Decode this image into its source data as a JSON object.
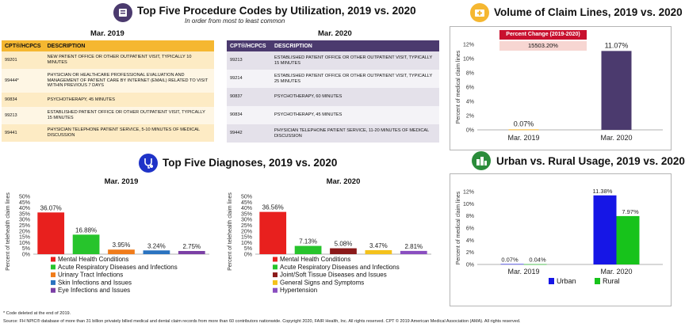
{
  "procedures": {
    "title": "Top Five Procedure Codes by Utilization, 2019 vs. 2020",
    "subtitle": "In order from most to least common",
    "col_code": "CPT®/HCPCS",
    "col_desc": "DESCRIPTION",
    "left": {
      "month": "Mar. 2019",
      "rows": [
        {
          "code": "99201",
          "desc": "NEW PATIENT OFFICE OR OTHER OUTPATIENT VISIT, TYPICALLY 10 MINUTES"
        },
        {
          "code": "99444*",
          "desc": "PHYSICIAN OR HEALTHCARE PROFESSIONAL EVALUATION AND MANAGEMENT OF PATIENT CARE BY INTERNET (EMAIL) RELATED TO VISIT WITHIN PREVIOUS 7 DAYS"
        },
        {
          "code": "90834",
          "desc": "PSYCHOTHERAPY, 45 MINUTES"
        },
        {
          "code": "99213",
          "desc": "ESTABLISHED PATIENT OFFICE OR OTHER OUTPATIENT VISIT, TYPICALLY 15 MINUTES"
        },
        {
          "code": "99441",
          "desc": "PHYSICIAN TELEPHONE PATIENT SERVICE, 5-10 MINUTES OF MEDICAL DISCUSSION"
        }
      ]
    },
    "right": {
      "month": "Mar. 2020",
      "rows": [
        {
          "code": "99213",
          "desc": "ESTABLISHED PATIENT OFFICE OR OTHER OUTPATIENT VISIT, TYPICALLY 15 MINUTES"
        },
        {
          "code": "99214",
          "desc": "ESTABLISHED PATIENT OFFICE OR OTHER OUTPATIENT VISIT, TYPICALLY 25 MINUTES"
        },
        {
          "code": "90837",
          "desc": "PSYCHOTHERAPY, 60 MINUTES"
        },
        {
          "code": "90834",
          "desc": "PSYCHOTHERAPY, 45 MINUTES"
        },
        {
          "code": "99442",
          "desc": "PHYSICIAN TELEPHONE PATIENT SERVICE, 11-20 MINUTES OF MEDICAL DISCUSSION"
        }
      ]
    }
  },
  "diagnoses": {
    "title": "Top Five Diagnoses, 2019 vs. 2020"
  },
  "claims": {
    "title": "Volume of Claim Lines, 2019 vs. 2020",
    "pct_change_label": "Percent Change (2019-2020)",
    "pct_change_value": "15503.20%"
  },
  "urban": {
    "title": "Urban vs. Rural Usage, 2019 vs. 2020"
  },
  "footer": {
    "note": "* Code deleted at the end of 2019.",
    "source": "Source: FH NPIC® database of more than 31 billion privately billed medical and dental claim records from more than 60 contributors nationwide. Copyright 2020, FAIR Health, Inc. All rights reserved. CPT © 2019 American Medical Association (AMA). All rights reserved."
  },
  "colors": {
    "gold": "#f5b731",
    "purple": "#4b3a6e",
    "blue": "#1f4e9e",
    "green": "#2a8c3a",
    "red_badge": "#c8102e",
    "pink_badge": "#f7d6d2"
  },
  "chart_data": [
    {
      "id": "diag2019",
      "type": "bar",
      "title": "Mar. 2019",
      "ylabel": "Percent of telehealth claim lines",
      "ylim": [
        0,
        50
      ],
      "yticks": [
        "0%",
        "5%",
        "10%",
        "15%",
        "20%",
        "25%",
        "30%",
        "35%",
        "40%",
        "45%",
        "50%"
      ],
      "legend_position": "bottom",
      "categories": [
        "Mental Health Conditions",
        "Acute Respiratory Diseases and Infections",
        "Urinary Tract Infections",
        "Skin Infections and Issues",
        "Eye Infections and Issues"
      ],
      "values": [
        36.07,
        16.88,
        3.95,
        3.24,
        2.75
      ],
      "labels": [
        "36.07%",
        "16.88%",
        "3.95%",
        "3.24%",
        "2.75%"
      ],
      "colors": [
        "#e8201e",
        "#27c42c",
        "#f07c1a",
        "#2a73c0",
        "#7b3fa5"
      ]
    },
    {
      "id": "diag2020",
      "type": "bar",
      "title": "Mar. 2020",
      "ylabel": "Percent of telehealth claim lines",
      "ylim": [
        0,
        50
      ],
      "yticks": [
        "0%",
        "5%",
        "10%",
        "15%",
        "20%",
        "25%",
        "30%",
        "35%",
        "40%",
        "45%",
        "50%"
      ],
      "legend_position": "bottom",
      "categories": [
        "Mental Health Conditions",
        "Acute Respiratory Diseases and Infections",
        "Joint/Soft Tissue Diseases and Issues",
        "General Signs and Symptoms",
        "Hypertension"
      ],
      "values": [
        36.56,
        7.13,
        5.08,
        3.47,
        2.81
      ],
      "labels": [
        "36.56%",
        "7.13%",
        "5.08%",
        "3.47%",
        "2.81%"
      ],
      "colors": [
        "#e8201e",
        "#27c42c",
        "#8b1a1a",
        "#f4c21c",
        "#8a4ec0"
      ]
    },
    {
      "id": "claims",
      "type": "bar",
      "ylabel": "Percent of medical claim lines",
      "ylim": [
        0,
        12
      ],
      "yticks": [
        "0%",
        "2%",
        "4%",
        "6%",
        "8%",
        "10%",
        "12%"
      ],
      "categories": [
        "Mar. 2019",
        "Mar. 2020"
      ],
      "values": [
        0.07,
        11.07
      ],
      "labels": [
        "0.07%",
        "11.07%"
      ],
      "colors": [
        "#f5b731",
        "#4b3a6e"
      ]
    },
    {
      "id": "urban",
      "type": "bar",
      "ylabel": "Percent of medical claim lines",
      "ylim": [
        0,
        12
      ],
      "yticks": [
        "0%",
        "2%",
        "4%",
        "6%",
        "8%",
        "10%",
        "12%"
      ],
      "legend_position": "bottom",
      "categories": [
        "Mar. 2019",
        "Mar. 2020"
      ],
      "series": [
        {
          "name": "Urban",
          "values": [
            0.07,
            11.38
          ],
          "labels": [
            "0.07%",
            "11.38%"
          ],
          "color": "#1616e6"
        },
        {
          "name": "Rural",
          "values": [
            0.04,
            7.97
          ],
          "labels": [
            "0.04%",
            "7.97%"
          ],
          "color": "#17c31b"
        }
      ]
    }
  ]
}
